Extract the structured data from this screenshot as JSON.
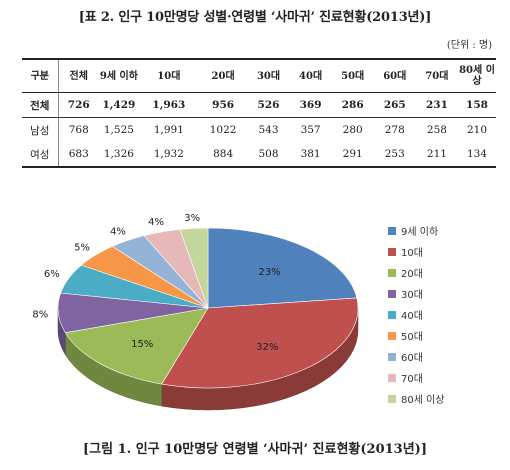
{
  "title": "[표 2. 인구 10만명당 성별·연령별 ‘사마귀’ 진료현황(2013년)]",
  "unit": "(단위 : 명)",
  "table": {
    "headers": [
      "구분",
      "전체",
      "9세 이하",
      "10대",
      "20대",
      "30대",
      "40대",
      "50대",
      "60대",
      "70대",
      "80세 이상"
    ],
    "rows": [
      {
        "label": "전체",
        "values": [
          "726",
          "1,429",
          "1,963",
          "956",
          "526",
          "369",
          "286",
          "265",
          "231",
          "158"
        ]
      },
      {
        "label": "남성",
        "values": [
          "768",
          "1,525",
          "1,991",
          "1022",
          "543",
          "357",
          "280",
          "278",
          "258",
          "210"
        ]
      },
      {
        "label": "여성",
        "values": [
          "683",
          "1,326",
          "1,932",
          "884",
          "508",
          "381",
          "291",
          "253",
          "211",
          "134"
        ]
      }
    ]
  },
  "chart_data": {
    "type": "pie",
    "labels": [
      "9세 이하",
      "10대",
      "20대",
      "30대",
      "40대",
      "50대",
      "60대",
      "70대",
      "80세 이상"
    ],
    "values": [
      23,
      32,
      15,
      8,
      6,
      5,
      4,
      4,
      3
    ],
    "value_labels": [
      "23%",
      "32%",
      "15%",
      "8%",
      "6%",
      "5%",
      "4%",
      "4%",
      "3%"
    ],
    "colors": [
      "#4f81bd",
      "#c0504d",
      "#9bbb59",
      "#8064a2",
      "#4bacc6",
      "#f79646",
      "#95b3d7",
      "#e6b9b8",
      "#c3d69b"
    ],
    "legend_position": "right",
    "style": "3d"
  },
  "caption": "[그림 1. 인구 10만명당 연령별 ‘사마귀’ 진료현황(2013년)]"
}
